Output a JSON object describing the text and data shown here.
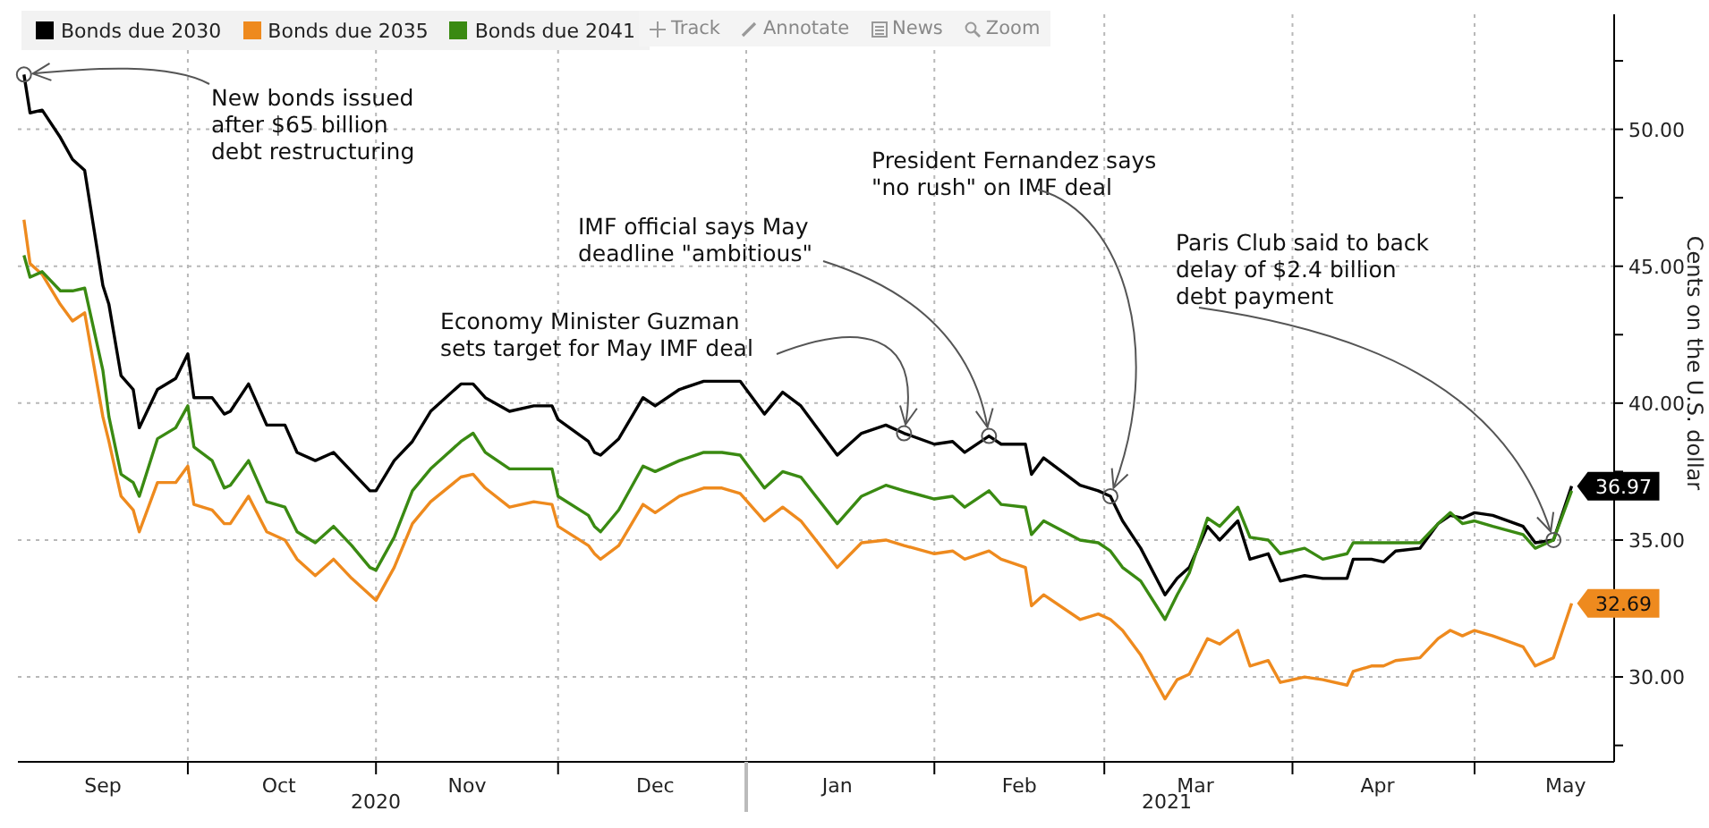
{
  "chart_data": {
    "type": "line",
    "ylabel": "Cents on the U.S. dollar",
    "legend": "top left",
    "grid": true,
    "xlim": [
      "2020-09-03",
      "2021-05-24"
    ],
    "xticks": [
      {
        "value": "2020-09-17",
        "label": "Sep"
      },
      {
        "value": "2020-10-01",
        "label": null
      },
      {
        "value": "2020-10-16",
        "label": "Oct"
      },
      {
        "value": "2020-11-01",
        "label": null
      },
      {
        "value": "2020-11-16",
        "label": "Nov"
      },
      {
        "value": "2020-12-01",
        "label": null
      },
      {
        "value": "2020-12-17",
        "label": "Dec"
      },
      {
        "value": "2021-01-01",
        "label": null
      },
      {
        "value": "2021-01-16",
        "label": "Jan"
      },
      {
        "value": "2021-02-01",
        "label": null
      },
      {
        "value": "2021-02-15",
        "label": "Feb"
      },
      {
        "value": "2021-03-01",
        "label": null
      },
      {
        "value": "2021-03-16",
        "label": "Mar"
      },
      {
        "value": "2021-04-01",
        "label": null
      },
      {
        "value": "2021-04-15",
        "label": "Apr"
      },
      {
        "value": "2021-05-01",
        "label": null
      },
      {
        "value": "2021-05-16",
        "label": "May"
      }
    ],
    "ylim": [
      26.9,
      54.2
    ],
    "yticks": [
      {
        "value": 27.5,
        "label": null
      },
      {
        "value": 30,
        "label": "30.00"
      },
      {
        "value": 32.5,
        "label": null
      },
      {
        "value": 35,
        "label": "35.00"
      },
      {
        "value": 37.5,
        "label": null
      },
      {
        "value": 40,
        "label": "40.00"
      },
      {
        "value": 42.5,
        "label": null
      },
      {
        "value": 45,
        "label": "45.00"
      },
      {
        "value": 47.5,
        "label": null
      },
      {
        "value": 50,
        "label": "50.00"
      },
      {
        "value": 52.5,
        "label": null
      }
    ],
    "x": [
      "2020-09-04",
      "2020-09-05",
      "2020-09-07",
      "2020-09-10",
      "2020-09-12",
      "2020-09-14",
      "2020-09-17",
      "2020-09-18",
      "2020-09-20",
      "2020-09-22",
      "2020-09-23",
      "2020-09-26",
      "2020-09-29",
      "2020-10-01",
      "2020-10-02",
      "2020-10-05",
      "2020-10-07",
      "2020-10-08",
      "2020-10-11",
      "2020-10-14",
      "2020-10-17",
      "2020-10-19",
      "2020-10-22",
      "2020-10-25",
      "2020-10-28",
      "2020-10-31",
      "2020-11-01",
      "2020-11-04",
      "2020-11-07",
      "2020-11-10",
      "2020-11-15",
      "2020-11-17",
      "2020-11-19",
      "2020-11-23",
      "2020-11-27",
      "2020-11-30",
      "2020-12-01",
      "2020-12-06",
      "2020-12-07",
      "2020-12-08",
      "2020-12-11",
      "2020-12-15",
      "2020-12-17",
      "2020-12-21",
      "2020-12-25",
      "2020-12-28",
      "2020-12-31",
      "2021-01-04",
      "2021-01-07",
      "2021-01-10",
      "2021-01-16",
      "2021-01-20",
      "2021-01-24",
      "2021-01-27",
      "2021-02-01",
      "2021-02-04",
      "2021-02-06",
      "2021-02-10",
      "2021-02-12",
      "2021-02-16",
      "2021-02-17",
      "2021-02-19",
      "2021-02-25",
      "2021-02-28",
      "2021-03-02",
      "2021-03-04",
      "2021-03-07",
      "2021-03-11",
      "2021-03-13",
      "2021-03-15",
      "2021-03-18",
      "2021-03-20",
      "2021-03-23",
      "2021-03-25",
      "2021-03-28",
      "2021-03-30",
      "2021-04-03",
      "2021-04-06",
      "2021-04-10",
      "2021-04-11",
      "2021-04-14",
      "2021-04-16",
      "2021-04-18",
      "2021-04-22",
      "2021-04-25",
      "2021-04-27",
      "2021-04-29",
      "2021-05-01",
      "2021-05-04",
      "2021-05-09",
      "2021-05-11",
      "2021-05-14",
      "2021-05-17"
    ],
    "series": [
      {
        "name": "Bonds due 2030",
        "color": "#000000",
        "values": [
          52.0,
          50.6,
          50.7,
          49.7,
          48.9,
          48.5,
          44.3,
          43.6,
          41.0,
          40.5,
          39.1,
          40.5,
          40.9,
          41.8,
          40.2,
          40.2,
          39.6,
          39.7,
          40.7,
          39.2,
          39.2,
          38.2,
          37.9,
          38.2,
          37.5,
          36.8,
          36.8,
          37.9,
          38.6,
          39.7,
          40.7,
          40.7,
          40.2,
          39.7,
          39.9,
          39.9,
          39.4,
          38.6,
          38.2,
          38.1,
          38.7,
          40.2,
          39.9,
          40.5,
          40.8,
          40.8,
          40.8,
          39.6,
          40.4,
          39.9,
          38.1,
          38.9,
          39.2,
          38.9,
          38.5,
          38.6,
          38.2,
          38.8,
          38.5,
          38.5,
          37.4,
          38.0,
          37.0,
          36.8,
          36.6,
          35.7,
          34.7,
          33.0,
          33.6,
          34.0,
          35.5,
          35.0,
          35.7,
          34.3,
          34.5,
          33.5,
          33.7,
          33.6,
          33.6,
          34.3,
          34.3,
          34.2,
          34.6,
          34.7,
          35.6,
          35.9,
          35.8,
          36.0,
          35.9,
          35.5,
          34.9,
          35.0,
          36.97
        ],
        "value_labels": [
          null,
          null,
          null,
          null,
          null,
          null,
          null,
          null,
          null,
          null,
          null,
          null,
          null,
          null,
          null,
          null,
          null,
          null,
          null,
          null,
          null,
          null,
          null,
          null,
          null,
          null,
          null,
          null,
          null,
          null,
          null,
          null,
          null,
          null,
          null,
          null,
          null,
          null,
          null,
          null,
          null,
          null,
          null,
          null,
          null,
          null,
          null,
          null,
          null,
          null,
          null,
          null,
          null,
          null,
          null,
          null,
          null,
          null,
          null,
          null,
          null,
          null,
          null,
          null,
          null,
          null,
          null,
          null,
          null,
          null,
          null,
          null,
          null,
          null,
          null,
          null,
          null,
          null,
          null,
          null,
          null,
          null,
          null,
          null,
          null,
          null,
          null,
          null,
          null,
          null,
          null,
          null,
          "36.97"
        ]
      },
      {
        "name": "Bonds due 2035",
        "color": "#ee8a1e",
        "values": [
          46.7,
          45.1,
          44.7,
          43.6,
          43.0,
          43.3,
          39.5,
          38.6,
          36.6,
          36.1,
          35.3,
          37.1,
          37.1,
          37.7,
          36.3,
          36.1,
          35.6,
          35.6,
          36.6,
          35.3,
          35.0,
          34.3,
          33.7,
          34.3,
          33.6,
          33.0,
          32.8,
          34.0,
          35.6,
          36.4,
          37.3,
          37.4,
          36.9,
          36.2,
          36.4,
          36.3,
          35.5,
          34.8,
          34.5,
          34.3,
          34.8,
          36.3,
          36.0,
          36.6,
          36.9,
          36.9,
          36.7,
          35.7,
          36.2,
          35.7,
          34.0,
          34.9,
          35.0,
          34.8,
          34.5,
          34.6,
          34.3,
          34.6,
          34.3,
          34.0,
          32.6,
          33.0,
          32.1,
          32.3,
          32.1,
          31.7,
          30.8,
          29.2,
          29.9,
          30.1,
          31.4,
          31.2,
          31.7,
          30.4,
          30.6,
          29.8,
          30.0,
          29.9,
          29.7,
          30.2,
          30.4,
          30.4,
          30.6,
          30.7,
          31.4,
          31.7,
          31.5,
          31.7,
          31.5,
          31.1,
          30.4,
          30.7,
          32.69
        ],
        "value_labels": [
          null,
          null,
          null,
          null,
          null,
          null,
          null,
          null,
          null,
          null,
          null,
          null,
          null,
          null,
          null,
          null,
          null,
          null,
          null,
          null,
          null,
          null,
          null,
          null,
          null,
          null,
          null,
          null,
          null,
          null,
          null,
          null,
          null,
          null,
          null,
          null,
          null,
          null,
          null,
          null,
          null,
          null,
          null,
          null,
          null,
          null,
          null,
          null,
          null,
          null,
          null,
          null,
          null,
          null,
          null,
          null,
          null,
          null,
          null,
          null,
          null,
          null,
          null,
          null,
          null,
          null,
          null,
          null,
          null,
          null,
          null,
          null,
          null,
          null,
          null,
          null,
          null,
          null,
          null,
          null,
          null,
          null,
          null,
          null,
          null,
          null,
          null,
          null,
          null,
          null,
          null,
          null,
          "32.69"
        ]
      },
      {
        "name": "Bonds due 2041",
        "color": "#3a8a12",
        "values": [
          45.4,
          44.6,
          44.8,
          44.1,
          44.1,
          44.2,
          41.2,
          39.5,
          37.4,
          37.1,
          36.6,
          38.7,
          39.1,
          39.9,
          38.4,
          37.9,
          36.9,
          37.0,
          37.9,
          36.4,
          36.2,
          35.3,
          34.9,
          35.5,
          34.8,
          34.0,
          33.9,
          35.1,
          36.8,
          37.6,
          38.6,
          38.9,
          38.2,
          37.6,
          37.6,
          37.6,
          36.6,
          35.9,
          35.5,
          35.3,
          36.1,
          37.7,
          37.5,
          37.9,
          38.2,
          38.2,
          38.1,
          36.9,
          37.5,
          37.3,
          35.6,
          36.6,
          37.0,
          36.8,
          36.5,
          36.6,
          36.2,
          36.8,
          36.3,
          36.2,
          35.2,
          35.7,
          35.0,
          34.9,
          34.6,
          34.0,
          33.5,
          32.1,
          33.0,
          33.8,
          35.8,
          35.5,
          36.2,
          35.1,
          35.0,
          34.5,
          34.7,
          34.3,
          34.5,
          34.9,
          34.9,
          34.9,
          34.9,
          34.9,
          35.6,
          36.0,
          35.6,
          35.7,
          35.5,
          35.2,
          34.7,
          35.0,
          36.8
        ]
      }
    ],
    "annotations": [
      {
        "text": "New bonds issued\nafter $65 billion\ndebt restructuring",
        "x": "2020-09-04",
        "y": 52.0
      },
      {
        "text": "Economy Minister Guzman\nsets target for May IMF deal",
        "x": "2021-01-27",
        "y": 38.9
      },
      {
        "text": "IMF official says May\ndeadline \"ambitious\"",
        "x": "2021-02-10",
        "y": 38.8
      },
      {
        "text": "President Fernandez says\n\"no rush\" on IMF deal",
        "x": "2021-03-02",
        "y": 36.6
      },
      {
        "text": "Paris Club said to back\ndelay of $2.4 billion\ndebt payment",
        "x": "2021-05-14",
        "y": 35.0
      },
      "2020",
      "2021",
      "Track",
      "Annotate",
      "News",
      "Zoom"
    ]
  }
}
